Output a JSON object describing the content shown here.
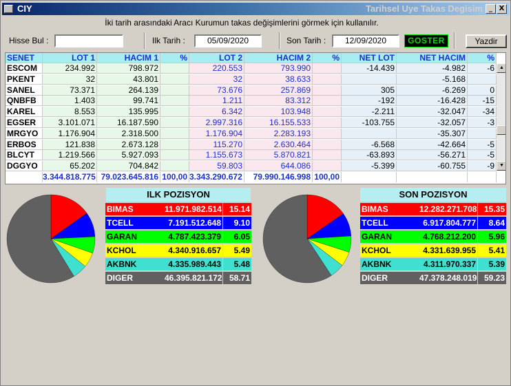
{
  "window": {
    "title": "CIY",
    "right_title": "Tarihsel Uye Takas Degisim",
    "min_glyph": "_",
    "close_glyph": "X"
  },
  "info_text": "İki tarih arasındaki  Aracı Kurumun takas değişimlerini görmek için kullanılır.",
  "toolbar": {
    "hisse_label": "Hisse Bul :",
    "hisse_value": "",
    "ilk_label": "Ilk Tarih :",
    "ilk_value": "05/09/2020",
    "son_label": "Son Tarih :",
    "son_value": "12/09/2020",
    "goster_label": "GOSTER",
    "yazdir_label": "Yazdir"
  },
  "table": {
    "headers": [
      "SENET",
      "LOT 1",
      "HACIM 1",
      "%",
      "LOT 2",
      "HACIM 2",
      "%",
      "NET LOT",
      "NET HACIM",
      "%"
    ],
    "rows": [
      [
        "ESCOM",
        "234.992",
        "798.972",
        "",
        "220.553",
        "793.990",
        "",
        "-14.439",
        "-4.982",
        "-6"
      ],
      [
        "PKENT",
        "32",
        "43.801",
        "",
        "32",
        "38.633",
        "",
        "",
        "-5.168",
        ""
      ],
      [
        "SANEL",
        "73.371",
        "264.139",
        "",
        "73.676",
        "257.869",
        "",
        "305",
        "-6.269",
        "0"
      ],
      [
        "QNBFB",
        "1.403",
        "99.741",
        "",
        "1.211",
        "83.312",
        "",
        "-192",
        "-16.428",
        "-15"
      ],
      [
        "KAREL",
        "8.553",
        "135.995",
        "",
        "6.342",
        "103.948",
        "",
        "-2.211",
        "-32.047",
        "-34"
      ],
      [
        "EGSER",
        "3.101.071",
        "16.187.590",
        "",
        "2.997.316",
        "16.155.533",
        "",
        "-103.755",
        "-32.057",
        "-3"
      ],
      [
        "MRGYO",
        "1.176.904",
        "2.318.500",
        "",
        "1.176.904",
        "2.283.193",
        "",
        "",
        "-35.307",
        ""
      ],
      [
        "ERBOS",
        "121.838",
        "2.673.128",
        "",
        "115.270",
        "2.630.464",
        "",
        "-6.568",
        "-42.664",
        "-5"
      ],
      [
        "BLCYT",
        "1.219.566",
        "5.927.093",
        "",
        "1.155.673",
        "5.870.821",
        "",
        "-63.893",
        "-56.271",
        "-5"
      ],
      [
        "DGGYO",
        "65.202",
        "704.842",
        "",
        "59.803",
        "644.086",
        "",
        "-5.399",
        "-60.755",
        "-9"
      ]
    ],
    "totals": [
      "",
      "3.344.818.775",
      "79.023.645.816",
      "100,00",
      "3.343.290.672",
      "79.990.146.998",
      "100,00",
      "",
      "",
      ""
    ]
  },
  "ilk": {
    "title": "ILK POZISYON",
    "rows": [
      {
        "name": "BIMAS",
        "value": "11.971.982.514",
        "pct": "15.14",
        "pct_num": 15.14,
        "bg": "#ff0000",
        "fg": "#ffffff"
      },
      {
        "name": "TCELL",
        "value": "7.191.512.648",
        "pct": "9.10",
        "pct_num": 9.1,
        "bg": "#0000ff",
        "fg": "#ffffff"
      },
      {
        "name": "GARAN",
        "value": "4.787.423.379",
        "pct": "6.05",
        "pct_num": 6.05,
        "bg": "#00ff00",
        "fg": "#000000"
      },
      {
        "name": "KCHOL",
        "value": "4.340.916.657",
        "pct": "5.49",
        "pct_num": 5.49,
        "bg": "#ffff00",
        "fg": "#000000"
      },
      {
        "name": "AKBNK",
        "value": "4.335.989.443",
        "pct": "5.48",
        "pct_num": 5.48,
        "bg": "#40e0d0",
        "fg": "#000000"
      },
      {
        "name": "DIGER",
        "value": "46.395.821.172",
        "pct": "58.71",
        "pct_num": 58.71,
        "bg": "#606060",
        "fg": "#ffffff"
      }
    ]
  },
  "son": {
    "title": "SON POZISYON",
    "rows": [
      {
        "name": "BIMAS",
        "value": "12.282.271.708",
        "pct": "15.35",
        "pct_num": 15.35,
        "bg": "#ff0000",
        "fg": "#ffffff"
      },
      {
        "name": "TCELL",
        "value": "6.917.804.777",
        "pct": "8.64",
        "pct_num": 8.64,
        "bg": "#0000ff",
        "fg": "#ffffff"
      },
      {
        "name": "GARAN",
        "value": "4.768.212.200",
        "pct": "5.96",
        "pct_num": 5.96,
        "bg": "#00ff00",
        "fg": "#000000"
      },
      {
        "name": "KCHOL",
        "value": "4.331.639.955",
        "pct": "5.41",
        "pct_num": 5.41,
        "bg": "#ffff00",
        "fg": "#000000"
      },
      {
        "name": "AKBNK",
        "value": "4.311.970.337",
        "pct": "5.39",
        "pct_num": 5.39,
        "bg": "#40e0d0",
        "fg": "#000000"
      },
      {
        "name": "DIGER",
        "value": "47.378.248.019",
        "pct": "59.23",
        "pct_num": 59.23,
        "bg": "#606060",
        "fg": "#ffffff"
      }
    ]
  }
}
